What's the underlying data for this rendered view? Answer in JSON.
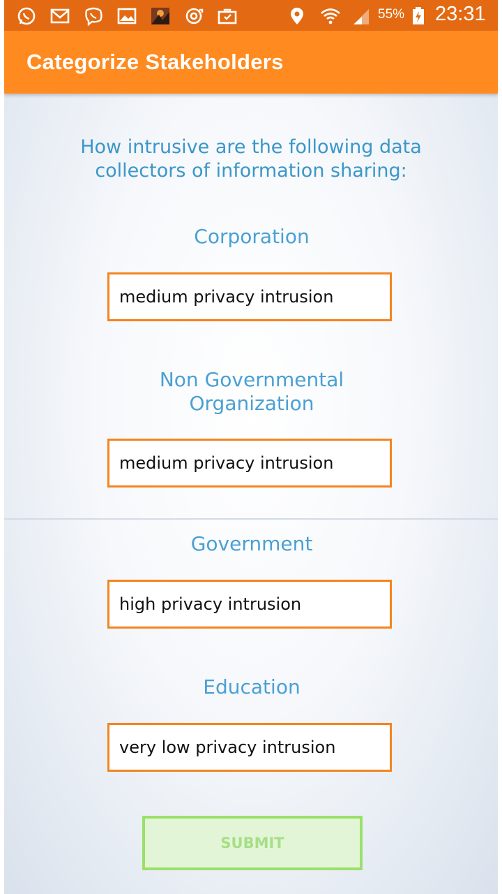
{
  "status_bar": {
    "battery_percent": "55%",
    "time": "23:31",
    "icons": [
      "whatsapp-icon",
      "gmail-icon",
      "viber-icon",
      "gallery-icon",
      "app-thumbnail-icon",
      "sync-icon",
      "briefcase-icon",
      "location-icon",
      "wifi-icon",
      "signal-icon",
      "battery-charging-icon"
    ]
  },
  "app_bar": {
    "title": "Categorize Stakeholders"
  },
  "content": {
    "question": "How intrusive are the following data collectors of information sharing:",
    "categories": [
      {
        "label": "Corporation",
        "selected": "medium privacy intrusion"
      },
      {
        "label": "Non Governmental Organization",
        "selected": "medium privacy intrusion"
      },
      {
        "label": "Government",
        "selected": "high privacy intrusion"
      },
      {
        "label": "Education",
        "selected": "very low privacy intrusion"
      }
    ]
  },
  "submit_label": "SUBMIT",
  "colors": {
    "status_bar": "#e36a12",
    "app_bar": "#ff8a1f",
    "label_blue": "#4aa0d3",
    "select_border": "#f5841f",
    "submit_border": "#9ae06b",
    "submit_fill": "#e3f5d7"
  }
}
